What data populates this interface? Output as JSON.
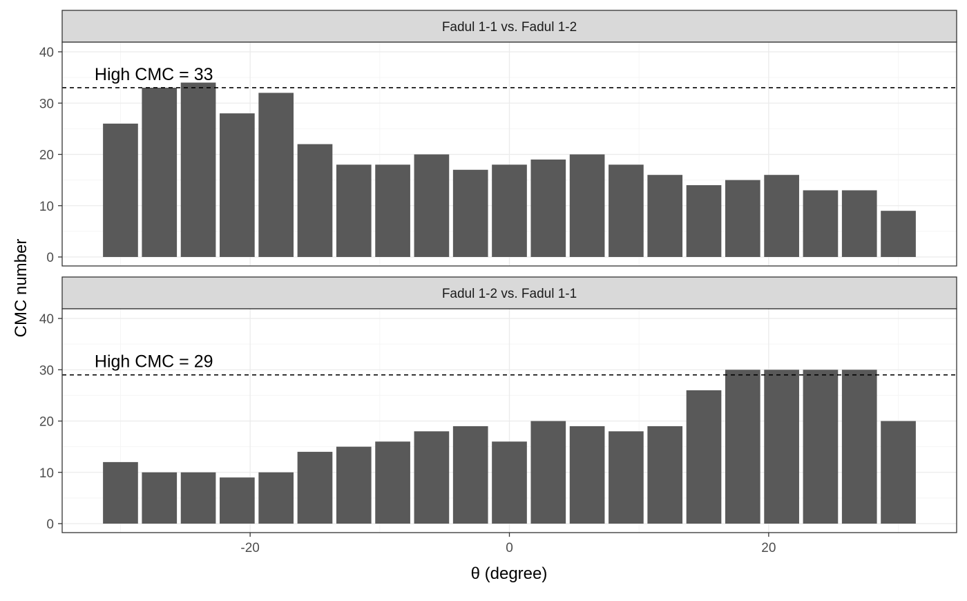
{
  "chart_data": [
    {
      "type": "bar",
      "strip_title": "Fadul 1-1 vs. Fadul 1-2",
      "x": [
        -30,
        -27,
        -24,
        -21,
        -18,
        -15,
        -12,
        -9,
        -6,
        -3,
        0,
        3,
        6,
        9,
        12,
        15,
        18,
        21,
        24,
        27,
        30
      ],
      "values": [
        26,
        33,
        34,
        28,
        32,
        22,
        18,
        18,
        20,
        17,
        18,
        19,
        20,
        18,
        16,
        14,
        15,
        16,
        13,
        13,
        9
      ],
      "hline": 33,
      "annotation": "High CMC = 33",
      "ylim": [
        0,
        40
      ],
      "yticks": [
        0,
        10,
        20,
        30,
        40
      ]
    },
    {
      "type": "bar",
      "strip_title": "Fadul 1-2 vs. Fadul 1-1",
      "x": [
        -30,
        -27,
        -24,
        -21,
        -18,
        -15,
        -12,
        -9,
        -6,
        -3,
        0,
        3,
        6,
        9,
        12,
        15,
        18,
        21,
        24,
        27,
        30
      ],
      "values": [
        12,
        10,
        10,
        9,
        10,
        14,
        15,
        16,
        18,
        19,
        16,
        20,
        19,
        18,
        19,
        26,
        30,
        30,
        30,
        30,
        20
      ],
      "hline": 29,
      "annotation": "High CMC = 29",
      "ylim": [
        0,
        40
      ],
      "yticks": [
        0,
        10,
        20,
        30,
        40
      ]
    }
  ],
  "axes": {
    "xlabel": "θ (degree)",
    "ylabel": "CMC number",
    "xlim": [
      -34.5,
      34.5
    ],
    "xticks": [
      -20,
      0,
      20
    ]
  },
  "colors": {
    "bar": "#595959",
    "strip_bg": "#d9d9d9",
    "grid_major": "#ebebeb",
    "grid_minor": "#f5f5f5",
    "frame": "#333333",
    "tick_text": "#4d4d4d"
  }
}
